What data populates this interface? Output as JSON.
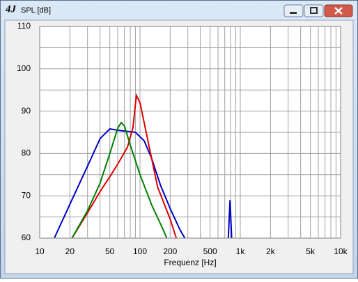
{
  "window": {
    "icon_text": "4J"
  },
  "chart_data": {
    "type": "line",
    "title": "SPL [dB]",
    "xlabel": "Frequenz [Hz]",
    "xscale": "log",
    "grid": true,
    "xlim": [
      10,
      10000
    ],
    "ylim": [
      60,
      110
    ],
    "xticks": [
      10,
      20,
      50,
      100,
      200,
      500,
      {
        "value": 1000,
        "label": "1k"
      },
      {
        "value": 2000,
        "label": "2k"
      },
      {
        "value": 5000,
        "label": "5k"
      },
      {
        "value": 10000,
        "label": "10k"
      }
    ],
    "yticks": [
      60,
      70,
      80,
      90,
      100,
      110
    ],
    "xgrid": [
      10,
      20,
      30,
      40,
      50,
      60,
      70,
      80,
      90,
      100,
      200,
      300,
      400,
      500,
      600,
      700,
      800,
      900,
      1000,
      2000,
      3000,
      4000,
      5000,
      6000,
      7000,
      8000,
      9000,
      10000
    ],
    "ygrid": [
      60,
      65,
      70,
      75,
      80,
      85,
      90,
      95,
      100,
      105,
      110
    ],
    "series": [
      {
        "color": "#0000c8",
        "x": [
          14,
          20,
          30,
          40,
          50,
          60,
          70,
          90,
          110,
          130,
          160,
          200,
          250,
          280,
          null,
          760,
          790,
          820
        ],
        "values": [
          60,
          68,
          77,
          83.5,
          85.8,
          85.5,
          85.3,
          85,
          83,
          79,
          72.5,
          67,
          62,
          60,
          null,
          60,
          69,
          60
        ]
      },
      {
        "color": "#e00000",
        "x": [
          21,
          30,
          40,
          50,
          60,
          75,
          85,
          92,
          100,
          120,
          150,
          200,
          230
        ],
        "values": [
          60,
          66,
          71,
          74.5,
          77.5,
          81.5,
          86,
          93.7,
          92,
          83,
          72,
          64.5,
          60
        ]
      },
      {
        "color": "#008000",
        "x": [
          21,
          30,
          40,
          50,
          60,
          65,
          70,
          80,
          100,
          130,
          170,
          185
        ],
        "values": [
          60,
          66.5,
          73,
          80,
          86,
          87.3,
          86.5,
          82,
          75,
          68,
          62,
          60
        ]
      }
    ]
  }
}
